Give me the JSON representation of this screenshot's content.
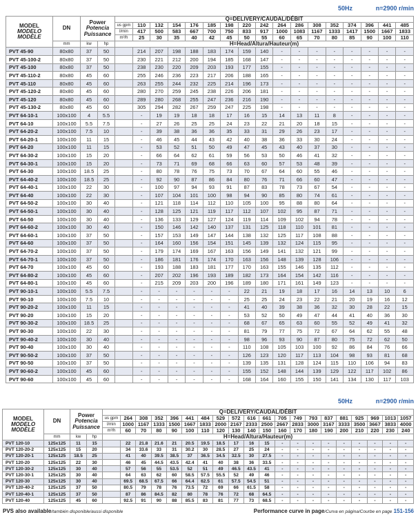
{
  "top": {
    "freq": "50Hz",
    "speed": "n=2900 r/min",
    "header": {
      "model": [
        "MODEL",
        "MODELO",
        "MODÈLE"
      ],
      "dn": "DN",
      "power": [
        "Power",
        "Potencia",
        "Puissance"
      ],
      "delivery": "Q=DELIVERY/CAUDAL/DÉBIT",
      "head": "H=Head/Altura/Hauteur(m)",
      "unit_gpm": "us gpm",
      "unit_lmin": "l/min",
      "unit_m3h": "m³/h",
      "mm": "mm",
      "kw": "kw",
      "hp": "hp"
    },
    "gpm": [
      "110",
      "132",
      "154",
      "176",
      "185",
      "198",
      "220",
      "242",
      "264",
      "286",
      "308",
      "352",
      "374",
      "396",
      "441",
      "485"
    ],
    "lmin": [
      "417",
      "500",
      "583",
      "667",
      "700",
      "750",
      "833",
      "917",
      "1000",
      "1083",
      "1167",
      "1333",
      "1417",
      "1500",
      "1667",
      "1833"
    ],
    "m3h": [
      "25",
      "30",
      "35",
      "40",
      "42",
      "45",
      "50",
      "55",
      "60",
      "65",
      "70",
      "80",
      "85",
      "90",
      "100",
      "110"
    ],
    "rows": [
      [
        "PVT 45-90",
        "80x80",
        "37",
        "50",
        "214",
        "207",
        "198",
        "188",
        "183",
        "174",
        "159",
        "140",
        "-",
        "-",
        "-",
        "-",
        "-",
        "-",
        "-",
        "-"
      ],
      [
        "PVT 45-100-2",
        "80x80",
        "37",
        "50",
        "230",
        "221",
        "212",
        "200",
        "194",
        "185",
        "168",
        "147",
        "-",
        "-",
        "-",
        "-",
        "-",
        "-",
        "-",
        "-"
      ],
      [
        "PVT 45-100",
        "80x80",
        "37",
        "50",
        "238",
        "230",
        "220",
        "209",
        "203",
        "193",
        "177",
        "155",
        "-",
        "-",
        "-",
        "-",
        "-",
        "-",
        "-",
        "-"
      ],
      [
        "PVT 45-110-2",
        "80x80",
        "45",
        "60",
        "255",
        "246",
        "236",
        "223",
        "217",
        "206",
        "188",
        "165",
        "-",
        "-",
        "-",
        "-",
        "-",
        "-",
        "-",
        "-"
      ],
      [
        "PVT 45-110",
        "80x80",
        "45",
        "60",
        "263",
        "255",
        "244",
        "232",
        "225",
        "214",
        "196",
        "173",
        "-",
        "-",
        "-",
        "-",
        "-",
        "-",
        "-",
        "-"
      ],
      [
        "PVT 45-120-2",
        "80x80",
        "45",
        "60",
        "280",
        "270",
        "259",
        "245",
        "238",
        "226",
        "206",
        "181",
        "-",
        "-",
        "-",
        "-",
        "-",
        "-",
        "-",
        "-"
      ],
      [
        "PVT 45-120",
        "80x80",
        "45",
        "60",
        "289",
        "280",
        "268",
        "255",
        "247",
        "236",
        "216",
        "190",
        "-",
        "-",
        "-",
        "-",
        "-",
        "-",
        "-",
        "-"
      ],
      [
        "PVT 45-130-2",
        "80x80",
        "45",
        "60",
        "305",
        "294",
        "282",
        "267",
        "259",
        "247",
        "225",
        "198",
        "-",
        "-",
        "-",
        "-",
        "-",
        "-",
        "-",
        "-"
      ],
      [
        "PVT 64-10-1",
        "100x100",
        "4",
        "5.5",
        "-",
        "19",
        "19",
        "18",
        "18",
        "17",
        "16",
        "15",
        "14",
        "13",
        "11",
        "8",
        "-",
        "-",
        "-",
        "-"
      ],
      [
        "PVT 64-10",
        "100x100",
        "5.5",
        "7.5",
        "-",
        "27",
        "26",
        "25",
        "25",
        "24",
        "23",
        "22",
        "21",
        "20",
        "18",
        "15",
        "-",
        "-",
        "-",
        "-"
      ],
      [
        "PVT 64-20-2",
        "100x100",
        "7.5",
        "10",
        "-",
        "39",
        "38",
        "36",
        "36",
        "35",
        "33",
        "31",
        "29",
        "26",
        "23",
        "17",
        "-",
        "-",
        "-",
        "-"
      ],
      [
        "PVT 64-20-1",
        "100x100",
        "11",
        "15",
        "-",
        "46",
        "45",
        "44",
        "43",
        "42",
        "40",
        "38",
        "36",
        "33",
        "30",
        "24",
        "-",
        "-",
        "-",
        "-"
      ],
      [
        "PVT 64-20",
        "100x100",
        "11",
        "15",
        "-",
        "53",
        "52",
        "51",
        "50",
        "49",
        "47",
        "45",
        "43",
        "40",
        "37",
        "30",
        "-",
        "-",
        "-",
        "-"
      ],
      [
        "PVT 64-30-2",
        "100x100",
        "15",
        "20",
        "-",
        "66",
        "64",
        "62",
        "61",
        "59",
        "56",
        "53",
        "50",
        "46",
        "41",
        "32",
        "-",
        "-",
        "-",
        "-"
      ],
      [
        "PVT 64-30-1",
        "100x100",
        "15",
        "20",
        "-",
        "73",
        "71",
        "69",
        "68",
        "66",
        "63",
        "60",
        "57",
        "53",
        "48",
        "39",
        "-",
        "-",
        "-",
        "-"
      ],
      [
        "PVT 64-30",
        "100x100",
        "18.5",
        "25",
        "-",
        "80",
        "78",
        "76",
        "75",
        "73",
        "70",
        "67",
        "64",
        "60",
        "55",
        "46",
        "-",
        "-",
        "-",
        "-"
      ],
      [
        "PVT 64-40-2",
        "100x100",
        "18.5",
        "25",
        "-",
        "92",
        "90",
        "87",
        "86",
        "84",
        "80",
        "76",
        "71",
        "66",
        "60",
        "47",
        "-",
        "-",
        "-",
        "-"
      ],
      [
        "PVT 64-40-1",
        "100x100",
        "22",
        "30",
        "-",
        "100",
        "97",
        "94",
        "93",
        "91",
        "87",
        "83",
        "78",
        "73",
        "67",
        "54",
        "-",
        "-",
        "-",
        "-"
      ],
      [
        "PVT 64-40",
        "100x100",
        "22",
        "30",
        "-",
        "107",
        "104",
        "101",
        "100",
        "98",
        "94",
        "90",
        "85",
        "80",
        "74",
        "61",
        "-",
        "-",
        "-",
        "-"
      ],
      [
        "PVT 64-50-2",
        "100x100",
        "30",
        "40",
        "-",
        "121",
        "118",
        "114",
        "112",
        "110",
        "105",
        "100",
        "95",
        "88",
        "80",
        "64",
        "-",
        "-",
        "-",
        "-"
      ],
      [
        "PVT 64-50-1",
        "100x100",
        "30",
        "40",
        "-",
        "128",
        "125",
        "121",
        "119",
        "117",
        "112",
        "107",
        "102",
        "95",
        "87",
        "71",
        "-",
        "-",
        "-",
        "-"
      ],
      [
        "PVT 64-50",
        "100x100",
        "30",
        "40",
        "-",
        "136",
        "133",
        "129",
        "127",
        "124",
        "119",
        "114",
        "109",
        "102",
        "94",
        "78",
        "-",
        "-",
        "-",
        "-"
      ],
      [
        "PVT 64-60-2",
        "100x100",
        "30",
        "40",
        "-",
        "150",
        "146",
        "142",
        "140",
        "137",
        "131",
        "125",
        "118",
        "110",
        "101",
        "81",
        "-",
        "-",
        "-",
        "-"
      ],
      [
        "PVT 64-60-1",
        "100x100",
        "37",
        "50",
        "-",
        "157",
        "153",
        "149",
        "147",
        "144",
        "138",
        "132",
        "125",
        "117",
        "108",
        "88",
        "-",
        "-",
        "-",
        "-"
      ],
      [
        "PVT 64-60",
        "100x100",
        "37",
        "50",
        "-",
        "164",
        "160",
        "156",
        "154",
        "151",
        "145",
        "139",
        "132",
        "124",
        "115",
        "95",
        "-",
        "-",
        "-",
        "-"
      ],
      [
        "PVT 64-70-2",
        "100x100",
        "37",
        "50",
        "-",
        "179",
        "174",
        "169",
        "167",
        "163",
        "156",
        "149",
        "141",
        "132",
        "121",
        "99",
        "-",
        "-",
        "-",
        "-"
      ],
      [
        "PVT 64-70-1",
        "100x100",
        "37",
        "50",
        "-",
        "186",
        "181",
        "176",
        "174",
        "170",
        "163",
        "156",
        "148",
        "139",
        "128",
        "106",
        "-",
        "-",
        "-",
        "-"
      ],
      [
        "PVT 64-70",
        "100x100",
        "45",
        "60",
        "-",
        "193",
        "188",
        "183",
        "181",
        "177",
        "170",
        "163",
        "155",
        "146",
        "135",
        "112",
        "-",
        "-",
        "-",
        "-"
      ],
      [
        "PVT 64-80-2",
        "100x100",
        "45",
        "60",
        "-",
        "207",
        "202",
        "196",
        "193",
        "189",
        "182",
        "173",
        "164",
        "154",
        "142",
        "116",
        "-",
        "-",
        "-",
        "-"
      ],
      [
        "PVT 64-80-1",
        "100x100",
        "45",
        "60",
        "-",
        "215",
        "209",
        "203",
        "200",
        "196",
        "189",
        "180",
        "171",
        "161",
        "149",
        "123",
        "-",
        "-",
        "-",
        "-"
      ],
      [
        "PVT 90-10-1",
        "100x100",
        "5.5",
        "7.5",
        "-",
        "-",
        "-",
        "-",
        "-",
        "-",
        "22",
        "21",
        "19",
        "18",
        "17",
        "16",
        "14",
        "13",
        "10",
        "6"
      ],
      [
        "PVT 90-10",
        "100x100",
        "7.5",
        "10",
        "-",
        "-",
        "-",
        "-",
        "-",
        "-",
        "25",
        "25",
        "24",
        "23",
        "22",
        "21",
        "20",
        "19",
        "16",
        "12"
      ],
      [
        "PVT 90-20-2",
        "100x100",
        "11",
        "15",
        "-",
        "-",
        "-",
        "-",
        "-",
        "-",
        "41",
        "40",
        "39",
        "38",
        "36",
        "32",
        "30",
        "28",
        "22",
        "15"
      ],
      [
        "PVT 90-20",
        "100x100",
        "15",
        "20",
        "-",
        "-",
        "-",
        "-",
        "-",
        "-",
        "53",
        "52",
        "50",
        "49",
        "47",
        "44",
        "41",
        "40",
        "36",
        "30"
      ],
      [
        "PVT 90-30-2",
        "100x100",
        "18.5",
        "25",
        "-",
        "-",
        "-",
        "-",
        "-",
        "-",
        "68",
        "67",
        "65",
        "63",
        "60",
        "55",
        "52",
        "49",
        "41",
        "32"
      ],
      [
        "PVT 90-30",
        "100x100",
        "22",
        "30",
        "-",
        "-",
        "-",
        "-",
        "-",
        "-",
        "81",
        "79",
        "77",
        "75",
        "72",
        "67",
        "64",
        "62",
        "55",
        "48"
      ],
      [
        "PVT 90-40-2",
        "100x100",
        "30",
        "40",
        "-",
        "-",
        "-",
        "-",
        "-",
        "-",
        "98",
        "96",
        "93",
        "90",
        "87",
        "80",
        "75",
        "72",
        "62",
        "50"
      ],
      [
        "PVT 90-40",
        "100x100",
        "30",
        "40",
        "-",
        "-",
        "-",
        "-",
        "-",
        "-",
        "110",
        "108",
        "105",
        "103",
        "100",
        "92",
        "86",
        "84",
        "76",
        "66"
      ],
      [
        "PVT 90-50-2",
        "100x100",
        "37",
        "50",
        "-",
        "-",
        "-",
        "-",
        "-",
        "-",
        "126",
        "123",
        "120",
        "117",
        "113",
        "104",
        "98",
        "93",
        "81",
        "68"
      ],
      [
        "PVT 90-50",
        "100x100",
        "37",
        "50",
        "-",
        "-",
        "-",
        "-",
        "-",
        "-",
        "139",
        "135",
        "131",
        "128",
        "124",
        "115",
        "110",
        "106",
        "94",
        "83"
      ],
      [
        "PVT 90-60-2",
        "100x100",
        "45",
        "60",
        "-",
        "-",
        "-",
        "-",
        "-",
        "-",
        "155",
        "152",
        "148",
        "144",
        "139",
        "129",
        "122",
        "117",
        "102",
        "86"
      ],
      [
        "PVT 90-60",
        "100x100",
        "45",
        "60",
        "-",
        "-",
        "-",
        "-",
        "-",
        "-",
        "168",
        "164",
        "160",
        "155",
        "150",
        "141",
        "134",
        "130",
        "117",
        "103"
      ]
    ]
  },
  "bottom": {
    "freq": "50Hz",
    "speed": "n=2900 r/min",
    "header": {
      "model": [
        "MODEL",
        "MODELO",
        "MODÈLE"
      ],
      "dn": "DN",
      "power": [
        "Power",
        "Potencia",
        "Puissance"
      ],
      "delivery": "Q=DELIVERY/CAUDAL/DÉBIT",
      "head": "H=Head/Altura/Hauteur(m)",
      "unit_gpm": "us gpm",
      "unit_lmin": "l/min",
      "unit_m3h": "m³/h",
      "mm": "mm",
      "kw": "kw",
      "hp": "hp"
    },
    "gpm": [
      "264",
      "308",
      "352",
      "396",
      "441",
      "484",
      "529",
      "572",
      "616",
      "661",
      "705",
      "749",
      "793",
      "837",
      "881",
      "925",
      "969",
      "1013",
      "1057"
    ],
    "lmin": [
      "1000",
      "1167",
      "1333",
      "1500",
      "1667",
      "1833",
      "2000",
      "2167",
      "2333",
      "2500",
      "2667",
      "2833",
      "3000",
      "3167",
      "3333",
      "3500",
      "3667",
      "3833",
      "4000"
    ],
    "m3h": [
      "60",
      "70",
      "80",
      "90",
      "100",
      "110",
      "120",
      "130",
      "140",
      "150",
      "160",
      "170",
      "180",
      "190",
      "200",
      "210",
      "220",
      "230",
      "240"
    ],
    "rows": [
      [
        "PVT 120-10",
        "125x125",
        "11",
        "15",
        "22",
        "21.8",
        "21.6",
        "21",
        "20.5",
        "19.5",
        "18.5",
        "17",
        "16",
        "15",
        "-",
        "-",
        "-",
        "-",
        "-",
        "-",
        "-",
        "-",
        "-"
      ],
      [
        "PVT 120-20-2",
        "125x125",
        "15",
        "20",
        "34",
        "33.6",
        "33",
        "31",
        "30.2",
        "30",
        "28.5",
        "27",
        "25",
        "24",
        "-",
        "-",
        "-",
        "-",
        "-",
        "-",
        "-",
        "-",
        "-"
      ],
      [
        "PVT 120-20-1",
        "125x125",
        "18.5",
        "25",
        "41",
        "40",
        "39.5",
        "38.5",
        "37",
        "36.5",
        "34.5",
        "32.5",
        "30",
        "27.5",
        "-",
        "-",
        "-",
        "-",
        "-",
        "-",
        "-",
        "-",
        "-"
      ],
      [
        "PVT 120-20",
        "125x125",
        "22",
        "30",
        "46",
        "45",
        "44.5",
        "43.5",
        "42.4",
        "41",
        "40",
        "38",
        "36",
        "33.5",
        "-",
        "-",
        "-",
        "-",
        "-",
        "-",
        "-",
        "-",
        "-"
      ],
      [
        "PVT 120-30-2",
        "125x125",
        "30",
        "40",
        "57",
        "56",
        "55",
        "53.5",
        "52",
        "51",
        "49",
        "46.5",
        "43.5",
        "41",
        "-",
        "-",
        "-",
        "-",
        "-",
        "-",
        "-",
        "-",
        "-"
      ],
      [
        "PVT 120-30-1",
        "125x125",
        "30",
        "40",
        "64",
        "63",
        "62",
        "60",
        "58.5",
        "57.5",
        "55.5",
        "52",
        "49",
        "46",
        "-",
        "-",
        "-",
        "-",
        "-",
        "-",
        "-",
        "-",
        "-"
      ],
      [
        "PVT 120-30",
        "125x125",
        "30",
        "40",
        "69.5",
        "68.5",
        "67.5",
        "66",
        "64.4",
        "62.5",
        "61",
        "57.5",
        "54.5",
        "51",
        "-",
        "-",
        "-",
        "-",
        "-",
        "-",
        "-",
        "-",
        "-"
      ],
      [
        "PVT 120-40-2",
        "125x125",
        "37",
        "50",
        "80.5",
        "79",
        "78",
        "76",
        "73.5",
        "72",
        "69",
        "66",
        "61.5",
        "58",
        "-",
        "-",
        "-",
        "-",
        "-",
        "-",
        "-",
        "-",
        "-"
      ],
      [
        "PVT 120-40-1",
        "125x125",
        "37",
        "50",
        "87",
        "86",
        "84.5",
        "82",
        "80",
        "78",
        "76",
        "72",
        "68",
        "64.5",
        "-",
        "-",
        "-",
        "-",
        "-",
        "-",
        "-",
        "-",
        "-"
      ],
      [
        "PVT 120-40",
        "125x125",
        "45",
        "60",
        "92.5",
        "91",
        "90",
        "88",
        "85.5",
        "83",
        "81",
        "77",
        "73",
        "68.5",
        "-",
        "-",
        "-",
        "-",
        "-",
        "-",
        "-",
        "-",
        "-"
      ]
    ]
  },
  "footer": {
    "pvs": "PVS also available",
    "pvs_alt": "/también disponible/aussi disponible",
    "curve": "Performance curve in page",
    "curve_alt": "/Curva en página/Courbe en page",
    "pages": "151-156"
  }
}
